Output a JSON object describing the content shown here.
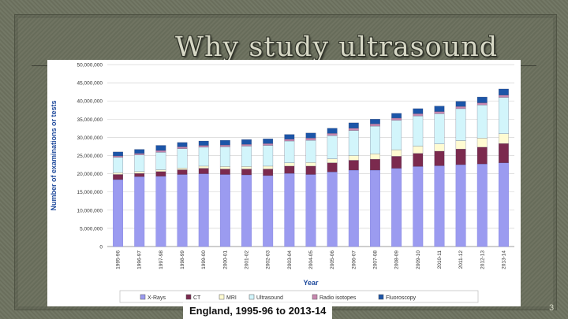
{
  "slide": {
    "title": "Why study ultrasound",
    "caption": "England, 1995-96 to 2013-14",
    "slide_number": "3"
  },
  "chart_data": {
    "type": "bar",
    "stacked": true,
    "xlabel": "Year",
    "ylabel": "Number of examinations or tests",
    "ylim": [
      0,
      50000000
    ],
    "yticks": [
      "0",
      "5,000,000",
      "10,000,000",
      "15,000,000",
      "20,000,000",
      "25,000,000",
      "30,000,000",
      "35,000,000",
      "40,000,000",
      "45,000,000",
      "50,000,000"
    ],
    "grid": true,
    "legend_position": "bottom",
    "categories": [
      "1995-96",
      "1996-97",
      "1997-98",
      "1998-99",
      "1999-00",
      "2000-01",
      "2001-02",
      "2002-03",
      "2003-04",
      "2004-05",
      "2005-06",
      "2006-07",
      "2007-08",
      "2008-09",
      "2009-10",
      "2010-11",
      "2011-12",
      "2012-13",
      "2013-14"
    ],
    "series": [
      {
        "name": "X-Rays",
        "color": "#9b9bf0",
        "values": [
          18400000,
          19200000,
          19300000,
          19800000,
          20000000,
          19800000,
          19700000,
          19500000,
          20100000,
          19800000,
          20500000,
          21000000,
          21000000,
          21500000,
          22000000,
          22200000,
          22500000,
          22700000,
          23000000
        ]
      },
      {
        "name": "CT",
        "color": "#7b2a4e",
        "values": [
          1400000,
          900000,
          1300000,
          1300000,
          1500000,
          1500000,
          1600000,
          1800000,
          2000000,
          2300000,
          2500000,
          2700000,
          3000000,
          3300000,
          3600000,
          4000000,
          4300000,
          4600000,
          5300000
        ]
      },
      {
        "name": "MRI",
        "color": "#fffbd2",
        "values": [
          500000,
          500000,
          500000,
          500000,
          600000,
          700000,
          700000,
          800000,
          900000,
          1000000,
          1100000,
          1300000,
          1500000,
          1800000,
          2000000,
          2000000,
          2300000,
          2500000,
          2700000
        ]
      },
      {
        "name": "Ultrasound",
        "color": "#d2f5fb",
        "values": [
          4200000,
          4600000,
          4800000,
          5300000,
          5200000,
          5400000,
          5600000,
          5700000,
          6000000,
          6100000,
          6400000,
          6900000,
          7600000,
          8100000,
          8300000,
          8300000,
          8800000,
          9100000,
          10000000
        ]
      },
      {
        "name": "Radio isotopes",
        "color": "#c888b0",
        "values": [
          400000,
          400000,
          500000,
          500000,
          500000,
          500000,
          500000,
          500000,
          500000,
          600000,
          600000,
          600000,
          600000,
          600000,
          600000,
          600000,
          600000,
          600000,
          600000
        ]
      },
      {
        "name": "Fluoroscopy",
        "color": "#1c55a8",
        "values": [
          1100000,
          1100000,
          1400000,
          1200000,
          1200000,
          1300000,
          1300000,
          1300000,
          1300000,
          1400000,
          1400000,
          1500000,
          1300000,
          1300000,
          1400000,
          1500000,
          1400000,
          1600000,
          1700000
        ]
      }
    ]
  }
}
